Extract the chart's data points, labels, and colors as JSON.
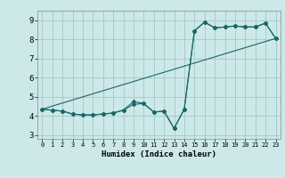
{
  "title": "",
  "xlabel": "Humidex (Indice chaleur)",
  "bg_color": "#cce8e8",
  "grid_color": "#aacccc",
  "line_color": "#1a6666",
  "xlim": [
    -0.5,
    23.5
  ],
  "ylim": [
    2.8,
    9.5
  ],
  "xticks": [
    0,
    1,
    2,
    3,
    4,
    5,
    6,
    7,
    8,
    9,
    10,
    11,
    12,
    13,
    14,
    15,
    16,
    17,
    18,
    19,
    20,
    21,
    22,
    23
  ],
  "yticks": [
    3,
    4,
    5,
    6,
    7,
    8,
    9
  ],
  "line1_x": [
    0,
    1,
    2,
    3,
    4,
    5,
    6,
    7,
    8,
    9,
    10,
    11,
    12,
    13,
    14,
    15,
    16,
    17,
    18,
    19,
    20,
    21,
    22,
    23
  ],
  "line1_y": [
    4.35,
    4.3,
    4.25,
    4.1,
    4.05,
    4.05,
    4.1,
    4.15,
    4.3,
    4.6,
    4.65,
    4.2,
    4.25,
    3.35,
    4.35,
    8.45,
    8.9,
    8.6,
    8.65,
    8.7,
    8.65,
    8.65,
    8.85,
    8.05
  ],
  "line2_x": [
    0,
    1,
    2,
    3,
    4,
    5,
    6,
    7,
    8,
    9,
    10,
    11,
    12,
    13,
    14,
    15,
    16,
    17,
    18,
    19,
    20,
    21,
    22,
    23
  ],
  "line2_y": [
    4.35,
    4.3,
    4.25,
    4.1,
    4.05,
    4.05,
    4.1,
    4.15,
    4.3,
    4.75,
    4.65,
    4.2,
    4.25,
    3.35,
    4.35,
    8.45,
    8.9,
    8.6,
    8.65,
    8.7,
    8.65,
    8.65,
    8.85,
    8.05
  ],
  "line3_x": [
    0,
    23
  ],
  "line3_y": [
    4.35,
    8.05
  ]
}
